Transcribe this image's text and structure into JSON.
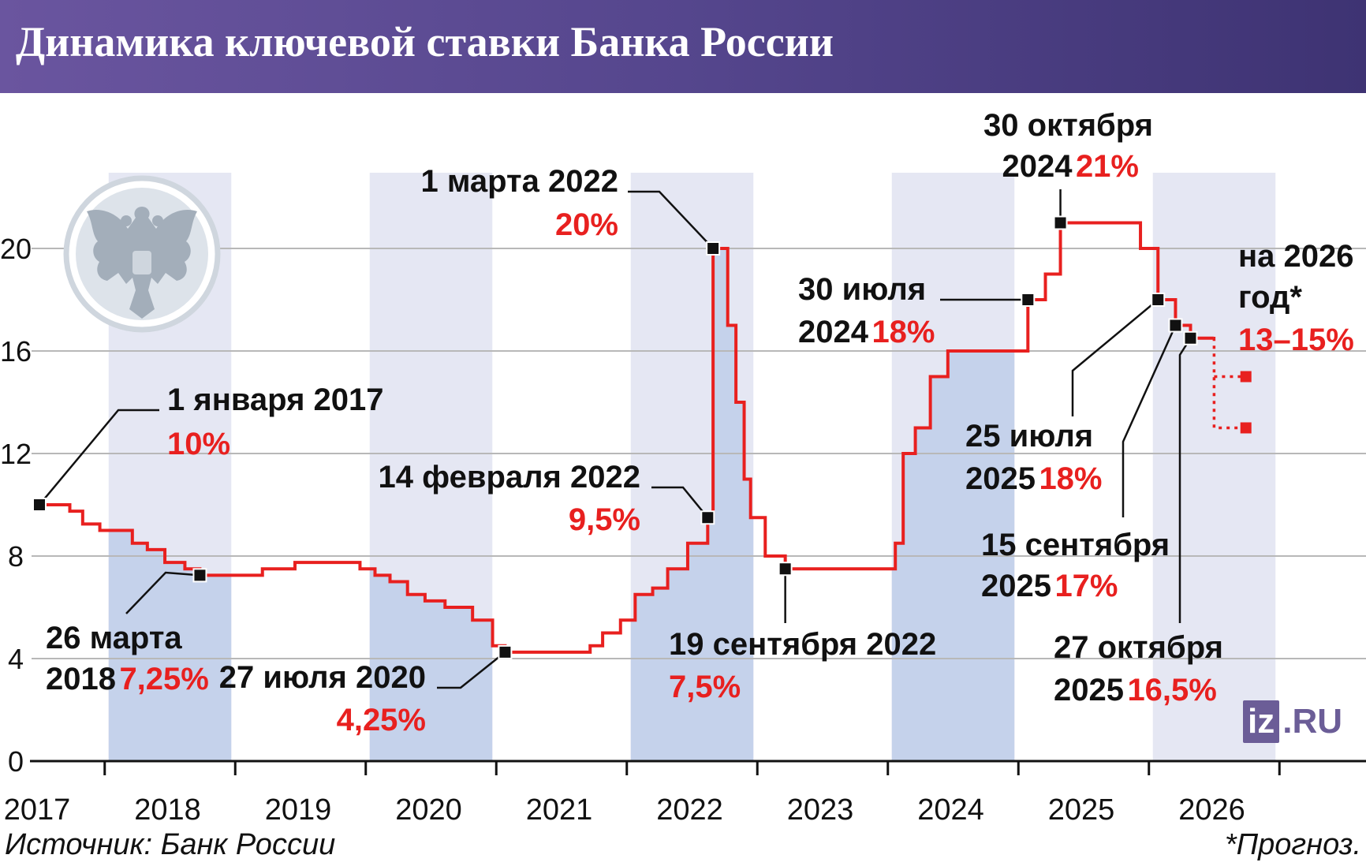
{
  "header": {
    "title": "Динамика ключевой ставки Банка России"
  },
  "footer": {
    "source": "Источник: Банк России",
    "footnote": "*Прогноз."
  },
  "logo": {
    "box_text": "iz",
    "suffix": ".RU",
    "color": "#6b5d97"
  },
  "emblem": {
    "icon": "double-headed-eagle-icon"
  },
  "colors": {
    "line": "#e8201f",
    "shade_light": "#e5e7f3",
    "shade_dark": "#c5d2eb",
    "header": "#55468d"
  },
  "chart_data": {
    "type": "line",
    "step": true,
    "title": "Динамика ключевой ставки Банка России",
    "xlabel": "",
    "ylabel": "",
    "ylim": [
      0,
      22
    ],
    "xlim": [
      "2016-09-01",
      "2026-12-31"
    ],
    "yticks": [
      "0",
      "4",
      "8",
      "12",
      "16",
      "20"
    ],
    "xticks": [
      "2017",
      "2018",
      "2019",
      "2020",
      "2021",
      "2022",
      "2023",
      "2024",
      "2025",
      "2026"
    ],
    "grid": true,
    "series": [
      {
        "name": "",
        "points": [
          [
            "2017-01-01",
            10
          ],
          [
            "2017-03-27",
            9.75
          ],
          [
            "2017-05-02",
            9.25
          ],
          [
            "2017-06-19",
            9
          ],
          [
            "2017-09-18",
            8.5
          ],
          [
            "2017-10-30",
            8.25
          ],
          [
            "2017-12-18",
            7.75
          ],
          [
            "2018-02-12",
            7.5
          ],
          [
            "2018-03-26",
            7.25
          ],
          [
            "2018-09-17",
            7.5
          ],
          [
            "2018-12-17",
            7.75
          ],
          [
            "2019-06-17",
            7.5
          ],
          [
            "2019-07-29",
            7.25
          ],
          [
            "2019-09-09",
            7
          ],
          [
            "2019-10-28",
            6.5
          ],
          [
            "2019-12-16",
            6.25
          ],
          [
            "2020-02-10",
            6
          ],
          [
            "2020-04-27",
            5.5
          ],
          [
            "2020-06-22",
            4.5
          ],
          [
            "2020-07-27",
            4.25
          ],
          [
            "2021-03-22",
            4.5
          ],
          [
            "2021-04-26",
            5
          ],
          [
            "2021-06-15",
            5.5
          ],
          [
            "2021-07-26",
            6.5
          ],
          [
            "2021-09-13",
            6.75
          ],
          [
            "2021-10-25",
            7.5
          ],
          [
            "2021-12-20",
            8.5
          ],
          [
            "2022-02-14",
            9.5
          ],
          [
            "2022-03-01",
            20
          ],
          [
            "2022-04-11",
            17
          ],
          [
            "2022-05-04",
            14
          ],
          [
            "2022-05-27",
            11
          ],
          [
            "2022-06-14",
            9.5
          ],
          [
            "2022-07-25",
            8
          ],
          [
            "2022-09-19",
            7.5
          ],
          [
            "2023-07-24",
            8.5
          ],
          [
            "2023-08-15",
            12
          ],
          [
            "2023-09-18",
            13
          ],
          [
            "2023-10-30",
            15
          ],
          [
            "2023-12-18",
            16
          ],
          [
            "2024-07-29",
            18
          ],
          [
            "2024-09-16",
            19
          ],
          [
            "2024-10-28",
            21
          ],
          [
            "2025-06-09",
            20
          ],
          [
            "2025-07-28",
            18
          ],
          [
            "2025-09-15",
            17
          ],
          [
            "2025-10-27",
            16.5
          ],
          [
            "2025-12-31",
            16.5
          ]
        ]
      }
    ],
    "forecast": {
      "start": "2026-01-01",
      "end": "2026-03-31",
      "high": 15,
      "low": 13
    },
    "marked": [
      {
        "x": "2017-01-01",
        "y": 10
      },
      {
        "x": "2018-03-26",
        "y": 7.25
      },
      {
        "x": "2020-07-27",
        "y": 4.25
      },
      {
        "x": "2022-02-14",
        "y": 9.5
      },
      {
        "x": "2022-03-01",
        "y": 20
      },
      {
        "x": "2022-09-19",
        "y": 7.5
      },
      {
        "x": "2024-07-29",
        "y": 18
      },
      {
        "x": "2024-10-28",
        "y": 21
      },
      {
        "x": "2025-07-28",
        "y": 18
      },
      {
        "x": "2025-09-15",
        "y": 17
      },
      {
        "x": "2025-10-27",
        "y": 16.5
      }
    ],
    "annotations": [
      {
        "date": "1 января 2017",
        "value": "10%"
      },
      {
        "date": "26 марта",
        "value_prefix": "2018",
        "value": "7,25%"
      },
      {
        "date": "27 июля 2020",
        "value": "4,25%"
      },
      {
        "date": "14 февраля 2022",
        "value": "9,5%"
      },
      {
        "date": "1 марта 2022",
        "value": "20%"
      },
      {
        "date": "19 сентября 2022",
        "value": "7,5%"
      },
      {
        "date": "30 июля",
        "value_prefix": "2024",
        "value": "18%"
      },
      {
        "date": "30 октября",
        "value_prefix": "2024",
        "value": "21%"
      },
      {
        "date": "25 июля",
        "value_prefix": "2025",
        "value": "18%"
      },
      {
        "date": "15 сентября",
        "value_prefix": "2025",
        "value": "17%"
      },
      {
        "date": "27 октября",
        "value_prefix": "2025",
        "value": "16,5%"
      },
      {
        "date": "на 2026",
        "value_prefix": "год*",
        "value": "13–15%"
      }
    ]
  }
}
